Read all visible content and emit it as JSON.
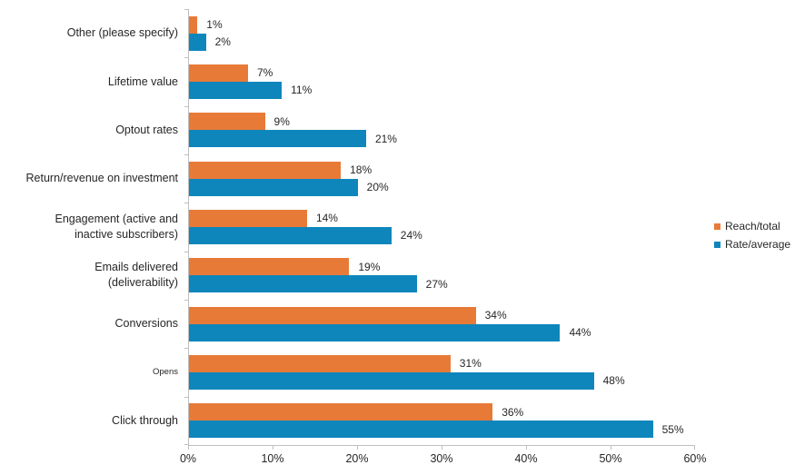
{
  "chart_data": {
    "type": "bar",
    "orientation": "horizontal",
    "title": "",
    "xlabel": "",
    "ylabel": "",
    "categories": [
      "Other (please specify)",
      "Lifetime value",
      "Optout rates",
      "Return/revenue on investment",
      "Engagement (active and inactive subscribers)",
      "Emails delivered (deliverability)",
      "Conversions",
      "Opens",
      "Click through"
    ],
    "series": [
      {
        "name": "Reach/total",
        "color": "#E87A38",
        "values": [
          1,
          7,
          9,
          18,
          14,
          19,
          34,
          31,
          36
        ]
      },
      {
        "name": "Rate/average",
        "color": "#0E86BC",
        "values": [
          2,
          11,
          21,
          20,
          24,
          27,
          44,
          48,
          55
        ]
      }
    ],
    "value_suffix": "%",
    "xlim": [
      0,
      60
    ],
    "x_tick_labels": [
      "0%",
      "10%",
      "20%",
      "30%",
      "40%",
      "50%",
      "60%"
    ],
    "legend_position": "right",
    "grid": false,
    "small_font_categories": [
      "Opens"
    ],
    "axis_color": "#BFBFBF",
    "text_color": "#262626",
    "background_color": "#ffffff"
  }
}
